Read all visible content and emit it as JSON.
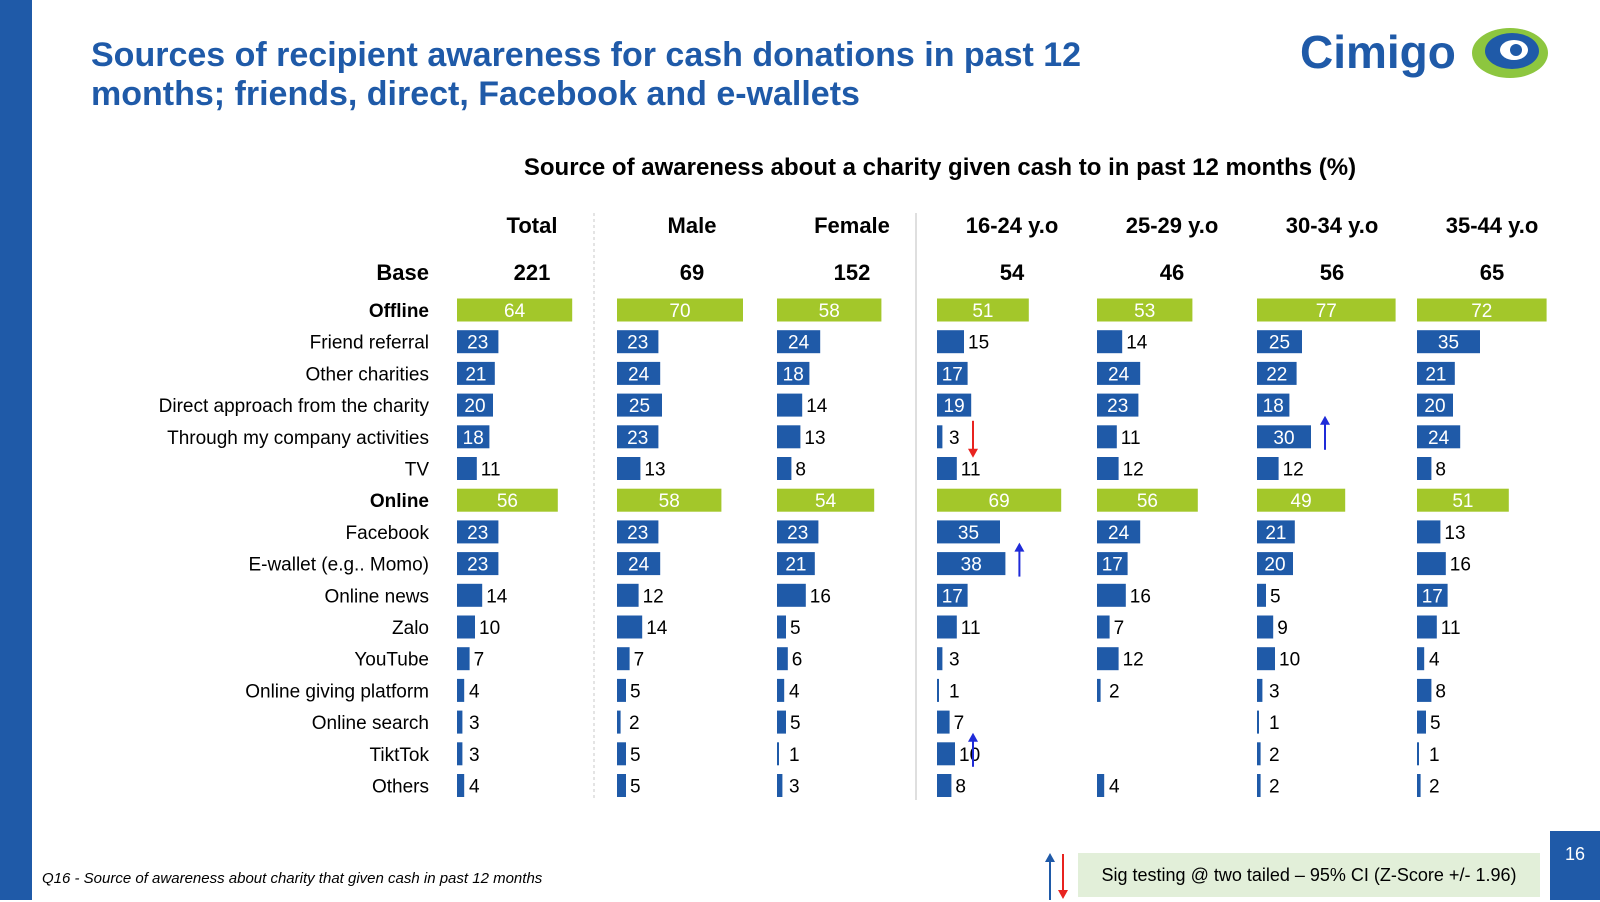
{
  "slide": {
    "title": "Sources of recipient awareness for cash donations in past 12 months; friends, direct, Facebook and e-wallets",
    "logo_text": "Cimigo",
    "footnote": "Q16 - Source of awareness about charity that given cash in past 12 months",
    "legend_text": "Sig testing @ two tailed – 95% CI (Z-Score +/- 1.96)",
    "page_number": "16",
    "colors": {
      "brand_blue": "#1f5aa8",
      "summary_green": "#a3c72a",
      "logo_green": "#8dc63f",
      "sig_up": "#1f2bd8",
      "sig_down": "#e8231f",
      "legend_bg": "#e2efd9"
    }
  },
  "chart_data": {
    "type": "bar",
    "orientation": "horizontal",
    "title": "Source of awareness about a charity given cash to in past 12 months (%)",
    "base_label": "Base",
    "categories": [
      "Offline",
      "Friend referral",
      "Other charities",
      "Direct approach from the charity",
      "Through my company activities",
      "TV",
      "Online",
      "Facebook",
      "E-wallet (e.g.. Momo)",
      "Online news",
      "Zalo",
      "YouTube",
      "Online giving platform",
      "Online search",
      "TiktTok",
      "Others"
    ],
    "summary_rows": [
      "Offline",
      "Online"
    ],
    "series": [
      {
        "name": "Total",
        "base": "221",
        "values": [
          64,
          23,
          21,
          20,
          18,
          11,
          56,
          23,
          23,
          14,
          10,
          7,
          4,
          3,
          3,
          4
        ],
        "sig": []
      },
      {
        "name": "Male",
        "base": "69",
        "values": [
          70,
          23,
          24,
          25,
          23,
          13,
          58,
          23,
          24,
          12,
          14,
          7,
          5,
          2,
          5,
          5
        ],
        "sig": []
      },
      {
        "name": "Female",
        "base": "152",
        "values": [
          58,
          24,
          18,
          14,
          13,
          8,
          54,
          23,
          21,
          16,
          5,
          6,
          4,
          5,
          1,
          3
        ],
        "sig": []
      },
      {
        "name": "16-24 y.o",
        "base": "54",
        "values": [
          51,
          15,
          17,
          19,
          3,
          11,
          69,
          35,
          38,
          17,
          11,
          3,
          1,
          7,
          10,
          8
        ],
        "sig": [
          {
            "row": 4,
            "dir": "down"
          },
          {
            "row": 8,
            "dir": "up"
          },
          {
            "row": 14,
            "dir": "up"
          }
        ]
      },
      {
        "name": "25-29 y.o",
        "base": "46",
        "values": [
          53,
          14,
          24,
          23,
          11,
          12,
          56,
          24,
          17,
          16,
          7,
          12,
          2,
          null,
          null,
          4
        ],
        "sig": []
      },
      {
        "name": "30-34 y.o",
        "base": "56",
        "values": [
          77,
          25,
          22,
          18,
          30,
          12,
          49,
          21,
          20,
          5,
          9,
          10,
          3,
          1,
          2,
          2
        ],
        "sig": [
          {
            "row": 4,
            "dir": "up"
          }
        ]
      },
      {
        "name": "35-44 y.o",
        "base": "65",
        "values": [
          72,
          35,
          21,
          20,
          24,
          8,
          51,
          13,
          16,
          17,
          11,
          4,
          8,
          5,
          1,
          2
        ],
        "sig": []
      }
    ],
    "xlim": [
      0,
      80
    ],
    "unit": "%"
  }
}
